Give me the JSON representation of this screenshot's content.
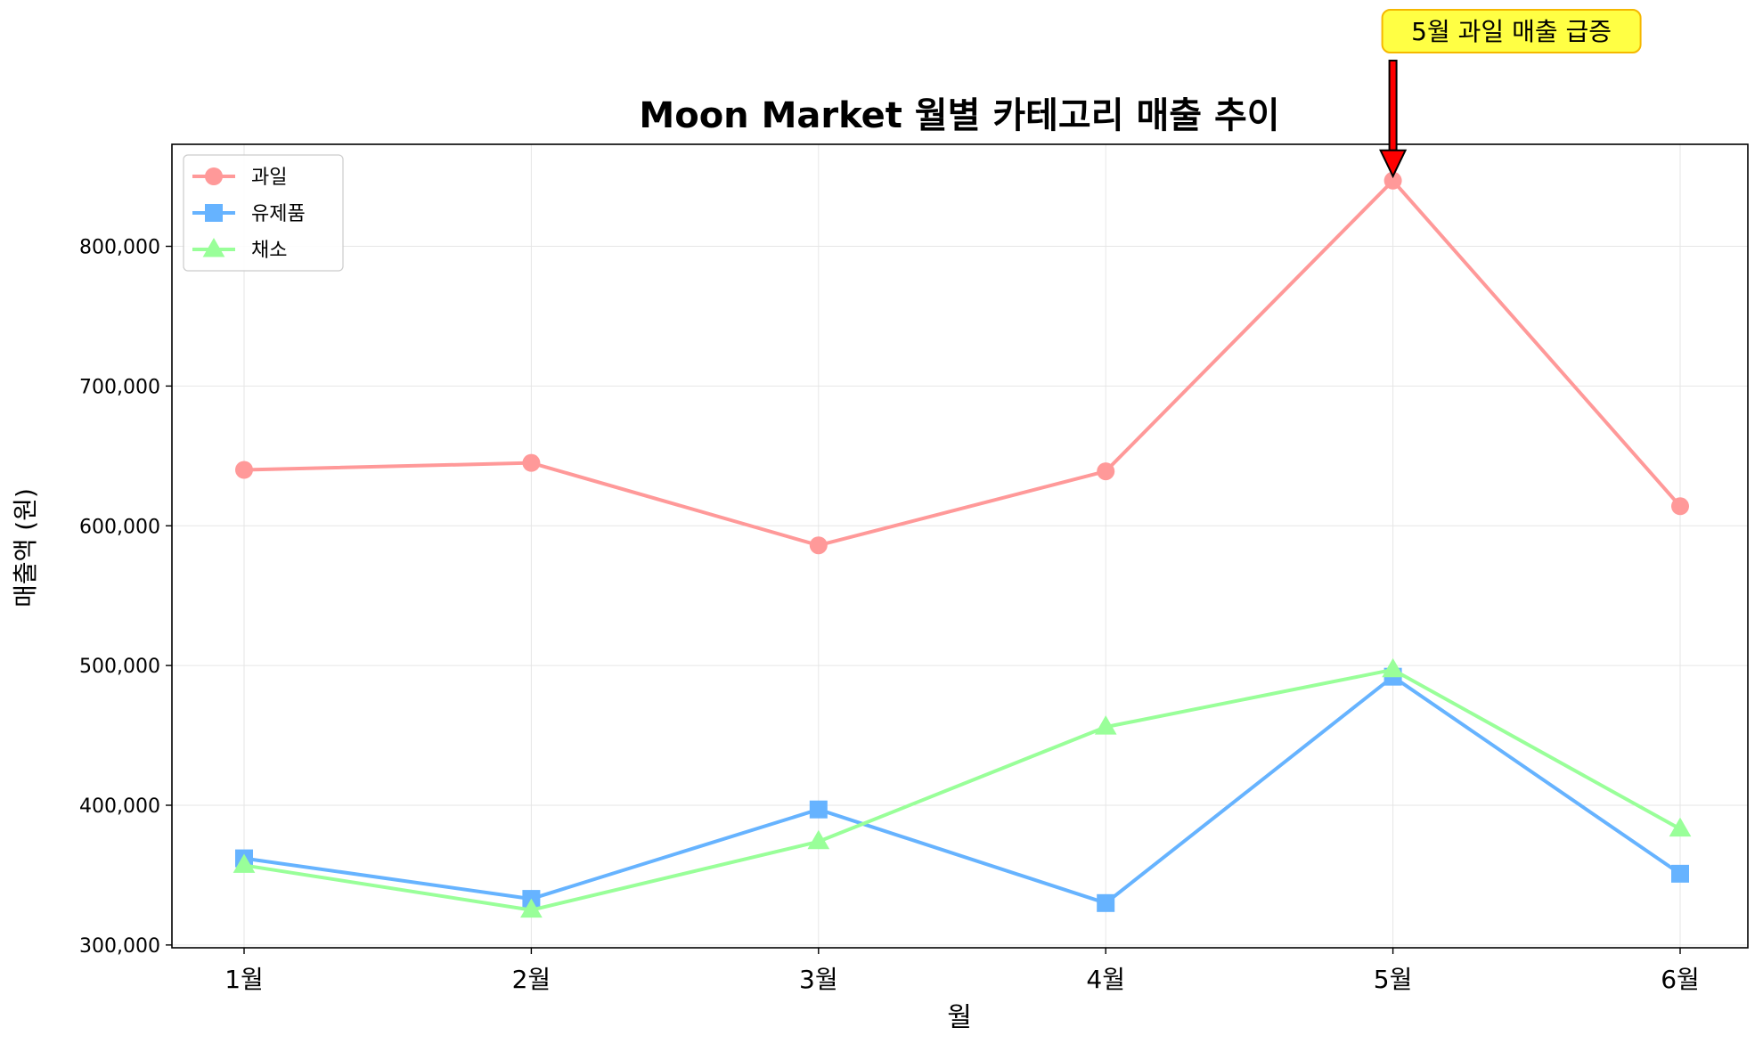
{
  "chart_data": {
    "type": "line",
    "title": "Moon Market 월별 카테고리 매출 추이",
    "xlabel": "월",
    "ylabel": "매출액 (원)",
    "categories": [
      "1월",
      "2월",
      "3월",
      "4월",
      "5월",
      "6월"
    ],
    "ylim": [
      298000,
      873000
    ],
    "yticks": [
      300000,
      400000,
      500000,
      600000,
      700000,
      800000
    ],
    "ytick_labels": [
      "300,000",
      "400,000",
      "500,000",
      "600,000",
      "700,000",
      "800,000"
    ],
    "grid": true,
    "legend_position": "top-left",
    "series": [
      {
        "name": "과일",
        "marker": "circle",
        "color": "#ff9999",
        "values": [
          640000,
          645000,
          586000,
          639000,
          847000,
          614000
        ]
      },
      {
        "name": "유제품",
        "marker": "square",
        "color": "#66b3ff",
        "values": [
          362000,
          333000,
          397000,
          330000,
          492000,
          351000
        ]
      },
      {
        "name": "채소",
        "marker": "triangle",
        "color": "#99ff99",
        "values": [
          357000,
          325000,
          374000,
          456000,
          497000,
          383000
        ]
      }
    ],
    "annotation": {
      "text": "5월 과일 매출 급증",
      "series_index": 0,
      "point_index": 4,
      "box_color": "#ffff44",
      "border_color": "#f5b800",
      "arrow_color": "#ff0000"
    }
  }
}
